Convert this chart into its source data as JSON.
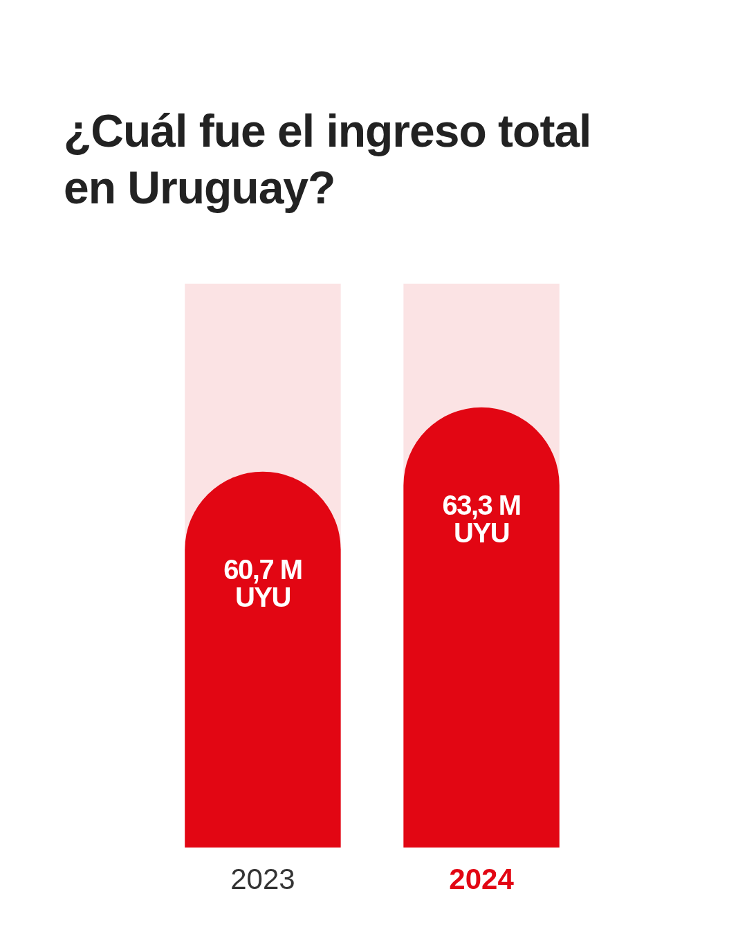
{
  "chart_data": {
    "type": "bar",
    "title": "¿Cuál fue el ingreso total en Uruguay?",
    "categories": [
      "2023",
      "2024"
    ],
    "values": [
      60.7,
      63.3
    ],
    "value_labels": [
      "60,7 M UYU",
      "63,3 M UYU"
    ],
    "color": "#e20613",
    "ylim": [
      45.5,
      68.3
    ],
    "tick_labels": "x"
  }
}
